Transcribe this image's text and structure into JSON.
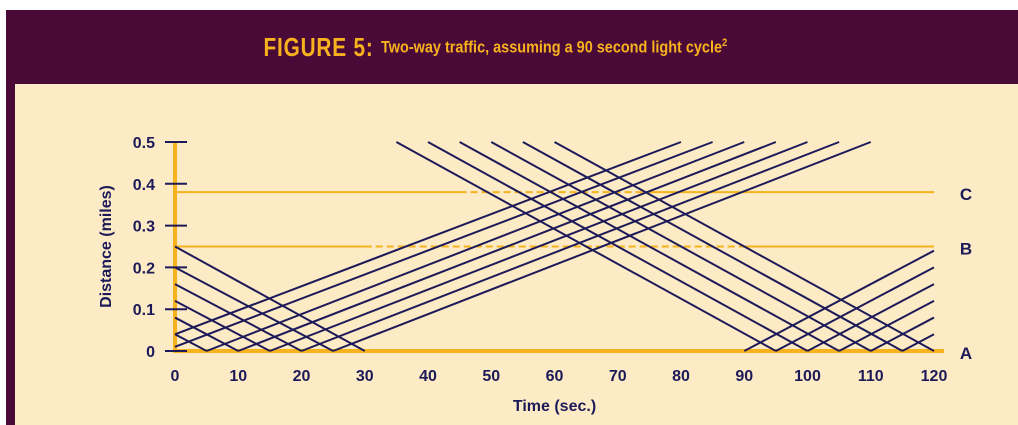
{
  "figure": {
    "label": "FIGURE 5:",
    "caption": "Two-way traffic, assuming a 90 second light cycle",
    "caption_sup": "2"
  },
  "colors": {
    "background": "#4a0a38",
    "panel": "#fcebc4",
    "axis_accent": "#f7b21e",
    "line": "#1d1a5a",
    "title": "#f7b21e"
  },
  "chart_data": {
    "type": "line",
    "title": "Two-way traffic, assuming a 90 second light cycle",
    "xlabel": "Time (sec.)",
    "ylabel": "Distance (miles)",
    "xlim": [
      0,
      120
    ],
    "ylim": [
      0,
      0.5
    ],
    "x_ticks": [
      "0",
      "10",
      "20",
      "30",
      "40",
      "50",
      "60",
      "70",
      "80",
      "90",
      "100",
      "110",
      "120"
    ],
    "y_ticks": [
      "0",
      "0.1",
      "0.2",
      "0.3",
      "0.4",
      "0.5"
    ],
    "grid": false,
    "markers": [
      {
        "label": "A",
        "y": 0
      },
      {
        "label": "B",
        "y": 0.25
      },
      {
        "label": "C",
        "y": 0.38
      }
    ],
    "marker_segments": [
      {
        "label": "C",
        "y": 0.38,
        "solid": [
          [
            0,
            45
          ],
          [
            75,
            120
          ]
        ],
        "dashed": [
          [
            45,
            75
          ]
        ]
      },
      {
        "label": "B",
        "y": 0.25,
        "solid": [
          [
            0,
            30
          ],
          [
            90,
            120
          ]
        ],
        "dashed": [
          [
            30,
            90
          ]
        ]
      }
    ],
    "series": [
      {
        "values": [
          [
            0,
            0.04
          ],
          [
            80,
            0.5
          ]
        ]
      },
      {
        "values": [
          [
            0,
            0.01
          ],
          [
            85,
            0.5
          ]
        ]
      },
      {
        "values": [
          [
            5,
            0
          ],
          [
            90,
            0.5
          ]
        ]
      },
      {
        "values": [
          [
            10,
            0
          ],
          [
            95,
            0.5
          ]
        ]
      },
      {
        "values": [
          [
            15,
            0
          ],
          [
            100,
            0.5
          ]
        ]
      },
      {
        "values": [
          [
            20,
            0
          ],
          [
            105,
            0.5
          ]
        ]
      },
      {
        "values": [
          [
            25,
            0
          ],
          [
            110,
            0.5
          ]
        ]
      },
      {
        "values": [
          [
            0,
            0.25
          ],
          [
            30,
            0
          ]
        ]
      },
      {
        "values": [
          [
            0,
            0.2
          ],
          [
            25,
            0
          ]
        ]
      },
      {
        "values": [
          [
            0,
            0.16
          ],
          [
            20,
            0
          ]
        ]
      },
      {
        "values": [
          [
            0,
            0.12
          ],
          [
            15,
            0
          ]
        ]
      },
      {
        "values": [
          [
            0,
            0.08
          ],
          [
            10,
            0
          ]
        ]
      },
      {
        "values": [
          [
            0,
            0.04
          ],
          [
            5,
            0
          ]
        ]
      },
      {
        "values": [
          [
            35,
            0.5
          ],
          [
            95,
            0
          ]
        ]
      },
      {
        "values": [
          [
            40,
            0.5
          ],
          [
            100,
            0
          ]
        ]
      },
      {
        "values": [
          [
            45,
            0.5
          ],
          [
            105,
            0
          ]
        ]
      },
      {
        "values": [
          [
            50,
            0.5
          ],
          [
            110,
            0
          ]
        ]
      },
      {
        "values": [
          [
            55,
            0.5
          ],
          [
            115,
            0
          ]
        ]
      },
      {
        "values": [
          [
            60,
            0.5
          ],
          [
            120,
            0
          ]
        ]
      },
      {
        "values": [
          [
            90,
            0
          ],
          [
            120,
            0.24
          ]
        ]
      },
      {
        "values": [
          [
            95,
            0
          ],
          [
            120,
            0.2
          ]
        ]
      },
      {
        "values": [
          [
            100,
            0
          ],
          [
            120,
            0.16
          ]
        ]
      },
      {
        "values": [
          [
            105,
            0
          ],
          [
            120,
            0.12
          ]
        ]
      },
      {
        "values": [
          [
            110,
            0
          ],
          [
            120,
            0.08
          ]
        ]
      },
      {
        "values": [
          [
            115,
            0
          ],
          [
            120,
            0.04
          ]
        ]
      }
    ]
  }
}
